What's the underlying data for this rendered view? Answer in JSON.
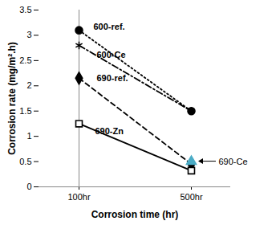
{
  "chart_data": {
    "type": "line",
    "x_label": "Corrosion time (hr)",
    "y_label": "Corrosion rate (mg/m².h)",
    "categories": [
      "100hr",
      "500hr"
    ],
    "ylim": [
      0,
      3.5
    ],
    "yticks": [
      0,
      0.5,
      1,
      1.5,
      2,
      2.5,
      3,
      3.5
    ],
    "grid": false,
    "series": [
      {
        "name": "600-ref.",
        "color": "#000000",
        "values": [
          3.1,
          1.5
        ],
        "marker": "circle",
        "line_style": "dotted"
      },
      {
        "name": "600-Ce",
        "color": "#000000",
        "values": [
          2.8,
          1.5
        ],
        "marker": "asterisk",
        "line_style": "dashdot"
      },
      {
        "name": "690-ref.",
        "color": "#000000",
        "values": [
          2.15,
          0.45
        ],
        "marker": "diamond",
        "line_style": "dashed"
      },
      {
        "name": "690-Zn",
        "color": "#000000",
        "values": [
          1.25,
          0.32
        ],
        "marker": "open-square",
        "line_style": "solid"
      },
      {
        "name": "690-Ce",
        "color": "#4bacc6",
        "values": [
          null,
          0.5
        ],
        "marker": "triangle",
        "line_style": "solid"
      }
    ]
  }
}
